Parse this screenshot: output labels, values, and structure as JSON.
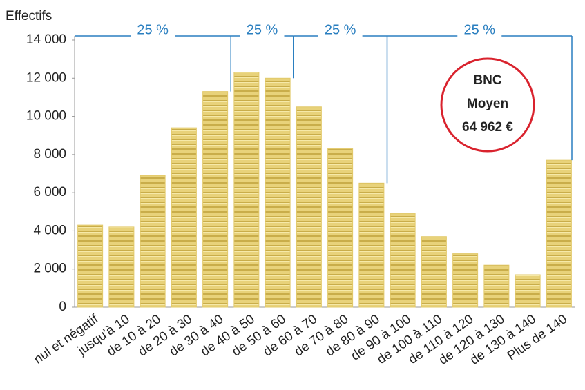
{
  "chart_data": {
    "type": "bar",
    "y_label": "Effectifs",
    "categories": [
      "nul et négatif",
      "jusqu'à 10",
      "de 10 à 20",
      "de 20 à 30",
      "de 30 à 40",
      "de 40 à 50",
      "de 50 à 60",
      "de 60 à 70",
      "de 70 à 80",
      "de 80 à 90",
      "de 90 à 100",
      "de 100 à 110",
      "de 110 à 120",
      "de 120 à 130",
      "de 130 à 140",
      "Plus de 140"
    ],
    "values": [
      4300,
      4200,
      6900,
      9400,
      11300,
      12300,
      12000,
      10500,
      8300,
      6500,
      4900,
      3700,
      2800,
      2200,
      1700,
      7700
    ],
    "color": "#e2c96a",
    "ylim": [
      0,
      14000
    ],
    "yticks": [
      0,
      {
        "value": 2000,
        "label": "2 000"
      },
      {
        "value": 4000,
        "label": "4 000"
      },
      {
        "value": 6000,
        "label": "6 000"
      },
      {
        "value": 8000,
        "label": "8 000"
      },
      {
        "value": 10000,
        "label": "10 000"
      },
      {
        "value": 12000,
        "label": "12 000"
      },
      {
        "value": 14000,
        "label": "14 000"
      }
    ],
    "quartile_labels": [
      "25 %",
      "25 %",
      "25 %",
      "25 %"
    ],
    "annotation": [
      "BNC",
      "Moyen",
      "64 962 €"
    ]
  }
}
